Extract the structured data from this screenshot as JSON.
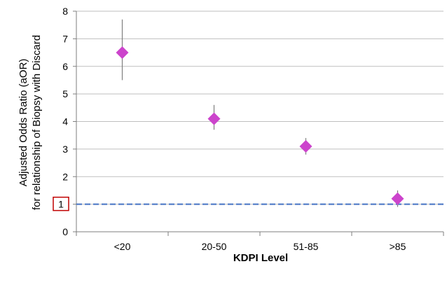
{
  "chart_data": {
    "type": "scatter",
    "title": "",
    "xlabel": "KDPI Level",
    "ylabel": [
      "Adjusted Odds Ratio (aOR)",
      "for relationship of Biopsy with Discard"
    ],
    "categories": [
      "<20",
      "20-50",
      "51-85",
      ">85"
    ],
    "ylim": [
      0,
      8
    ],
    "yticks": [
      0,
      1,
      2,
      3,
      4,
      5,
      6,
      7,
      8
    ],
    "grid": true,
    "legend": "none",
    "series": [
      {
        "values": [
          6.5,
          4.1,
          3.1,
          1.2
        ],
        "lower": [
          5.5,
          3.7,
          2.8,
          0.9
        ],
        "upper": [
          7.7,
          4.6,
          3.4,
          1.5
        ]
      }
    ],
    "reference_line": {
      "y": 1,
      "label": "1"
    },
    "colors": {
      "marker": "#CC44CC",
      "error_bar": "#7f7f7f",
      "grid": "#bfbfbf",
      "axis": "#7f7f7f",
      "reference_line": "#4472C4",
      "highlight_box": "#C00000"
    }
  }
}
